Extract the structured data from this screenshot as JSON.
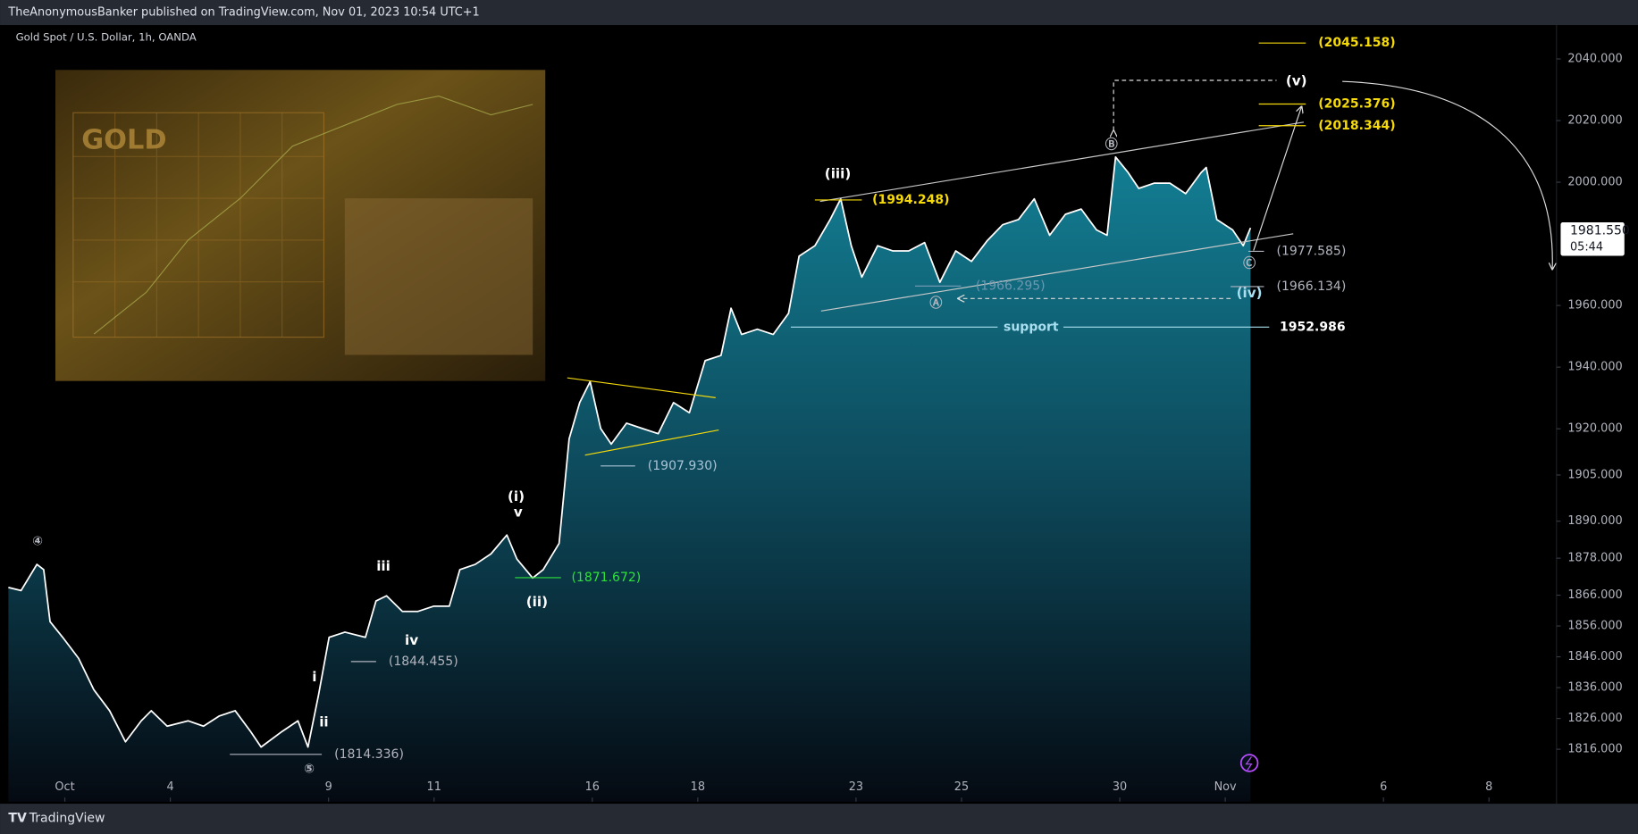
{
  "header": "TheAnonymousBanker published on TradingView.com, Nov 01, 2023 10:54 UTC+1",
  "footer": "TradingView",
  "chart_data": {
    "type": "area",
    "title": "Gold Spot / U.S. Dollar, 1h, OANDA",
    "color": "#ffffff",
    "x": [
      -1.07,
      -0.83,
      -0.53,
      -0.4,
      -0.28,
      -0.04,
      0.26,
      0.55,
      0.85,
      1.15,
      1.45,
      1.64,
      1.94,
      2.34,
      2.63,
      2.93,
      3.23,
      3.52,
      3.72,
      4.12,
      4.42,
      4.61,
      4.81,
      5.01,
      5.31,
      5.7,
      5.9,
      6.1,
      6.4,
      6.69,
      6.99,
      7.29,
      7.49,
      7.78,
      8.08,
      8.38,
      8.57,
      8.87,
      9.07,
      9.37,
      9.56,
      9.76,
      9.96,
      10.16,
      10.36,
      10.65,
      10.95,
      11.25,
      11.54,
      11.84,
      12.14,
      12.44,
      12.63,
      12.83,
      13.13,
      13.43,
      13.72,
      13.92,
      14.22,
      14.51,
      14.71,
      14.91,
      15.11,
      15.41,
      15.7,
      16.0,
      16.3,
      16.59,
      16.89,
      17.19,
      17.49,
      17.78,
      18.08,
      18.38,
      18.67,
      18.97,
      19.27,
      19.56,
      19.76,
      19.92,
      20.16,
      20.36,
      20.65,
      20.95,
      21.25,
      21.54,
      21.64,
      21.84,
      22.14,
      22.34,
      22.48
    ],
    "values": [
      1868.5,
      1867.5,
      1876.0,
      1874.3,
      1857.4,
      1852.3,
      1845.5,
      1835.3,
      1828.5,
      1818.4,
      1825.2,
      1828.5,
      1823.5,
      1825.2,
      1823.5,
      1826.8,
      1828.5,
      1821.8,
      1816.7,
      1821.8,
      1825.2,
      1816.7,
      1833.6,
      1852.3,
      1854.0,
      1852.3,
      1864.1,
      1865.8,
      1860.7,
      1860.7,
      1862.4,
      1862.4,
      1874.3,
      1876.0,
      1879.4,
      1885.5,
      1877.7,
      1871.6,
      1874.3,
      1882.8,
      1916.7,
      1928.5,
      1935.3,
      1920.1,
      1915.0,
      1921.8,
      1920.1,
      1918.4,
      1928.5,
      1925.2,
      1942.1,
      1943.8,
      1959.1,
      1950.6,
      1952.3,
      1950.6,
      1957.4,
      1976.0,
      1979.4,
      1987.9,
      1994.6,
      1979.4,
      1969.2,
      1979.4,
      1977.7,
      1977.7,
      1980.4,
      1967.5,
      1977.7,
      1974.3,
      1981.1,
      1986.2,
      1987.9,
      1994.6,
      1982.8,
      1989.6,
      1991.3,
      1984.5,
      1982.8,
      2008.2,
      2003.1,
      1998.0,
      1999.7,
      1999.7,
      1996.3,
      2003.1,
      2004.8,
      1987.9,
      1984.5,
      1979.4,
      1985.2
    ],
    "xlim": [
      -1.07,
      28.28
    ],
    "xticks": [
      {
        "value": 0,
        "label": "Oct"
      },
      {
        "value": 2,
        "label": "4"
      },
      {
        "value": 5,
        "label": "9"
      },
      {
        "value": 7,
        "label": "11"
      },
      {
        "value": 10,
        "label": "16"
      },
      {
        "value": 12,
        "label": "18"
      },
      {
        "value": 15,
        "label": "23"
      },
      {
        "value": 17,
        "label": "25"
      },
      {
        "value": 20,
        "label": "30"
      },
      {
        "value": 22,
        "label": "Nov"
      },
      {
        "value": 25,
        "label": "6"
      },
      {
        "value": 27,
        "label": "8"
      }
    ],
    "ylim": [
      1799,
      2051
    ],
    "yticks": [
      {
        "value": 1816,
        "label": "1816.000"
      },
      {
        "value": 1826,
        "label": "1826.000"
      },
      {
        "value": 1836,
        "label": "1836.000"
      },
      {
        "value": 1846,
        "label": "1846.000"
      },
      {
        "value": 1856,
        "label": "1856.000"
      },
      {
        "value": 1866,
        "label": "1866.000"
      },
      {
        "value": 1878,
        "label": "1878.000"
      },
      {
        "value": 1890,
        "label": "1890.000"
      },
      {
        "value": 1905,
        "label": "1905.000"
      },
      {
        "value": 1920,
        "label": "1920.000"
      },
      {
        "value": 1940,
        "label": "1940.000"
      },
      {
        "value": 1960,
        "label": "1960.000"
      },
      {
        "value": 2000,
        "label": "2000.000"
      },
      {
        "value": 2020,
        "label": "2020.000"
      },
      {
        "value": 2040,
        "label": "2040.000"
      }
    ],
    "last_price": {
      "value": 1981.55,
      "label": "1981.550"
    },
    "countdown": "05:44",
    "levels": [
      {
        "value": 2045.158,
        "label": "(2045.158)",
        "color": "#f5d90a"
      },
      {
        "value": 2025.376,
        "label": "(2025.376)",
        "color": "#f5d90a"
      },
      {
        "value": 2018.344,
        "label": "(2018.344)",
        "color": "#f5d90a"
      },
      {
        "value": 1994.248,
        "label": "(1994.248)",
        "color": "#f5d90a"
      },
      {
        "value": 1977.585,
        "label": "(1977.585)",
        "color": "#b2b5be"
      },
      {
        "value": 1966.295,
        "label": "(1966.295)",
        "color": "#6f97b0"
      },
      {
        "value": 1966.134,
        "label": "(1966.134)",
        "color": "#b2b5be"
      },
      {
        "value": 1952.986,
        "label": "1952.986",
        "color": "#ffffff"
      },
      {
        "value": 1907.93,
        "label": "(1907.930)",
        "color": "#a9c4d6"
      },
      {
        "value": 1871.672,
        "label": "(1871.672)",
        "color": "#2ee23a"
      },
      {
        "value": 1844.455,
        "label": "(1844.455)",
        "color": "#b2b5be"
      },
      {
        "value": 1814.336,
        "label": "(1814.336)",
        "color": "#b2b5be"
      }
    ],
    "support_label": "support",
    "wave_labels": [
      "④",
      "⑤",
      "i",
      "ii",
      "iii",
      "iv",
      "v",
      "(i)",
      "(ii)",
      "(iii)",
      "(iv)",
      "(v)",
      "Ⓐ",
      "Ⓑ",
      "Ⓒ"
    ],
    "inset_text": "GOLD"
  }
}
